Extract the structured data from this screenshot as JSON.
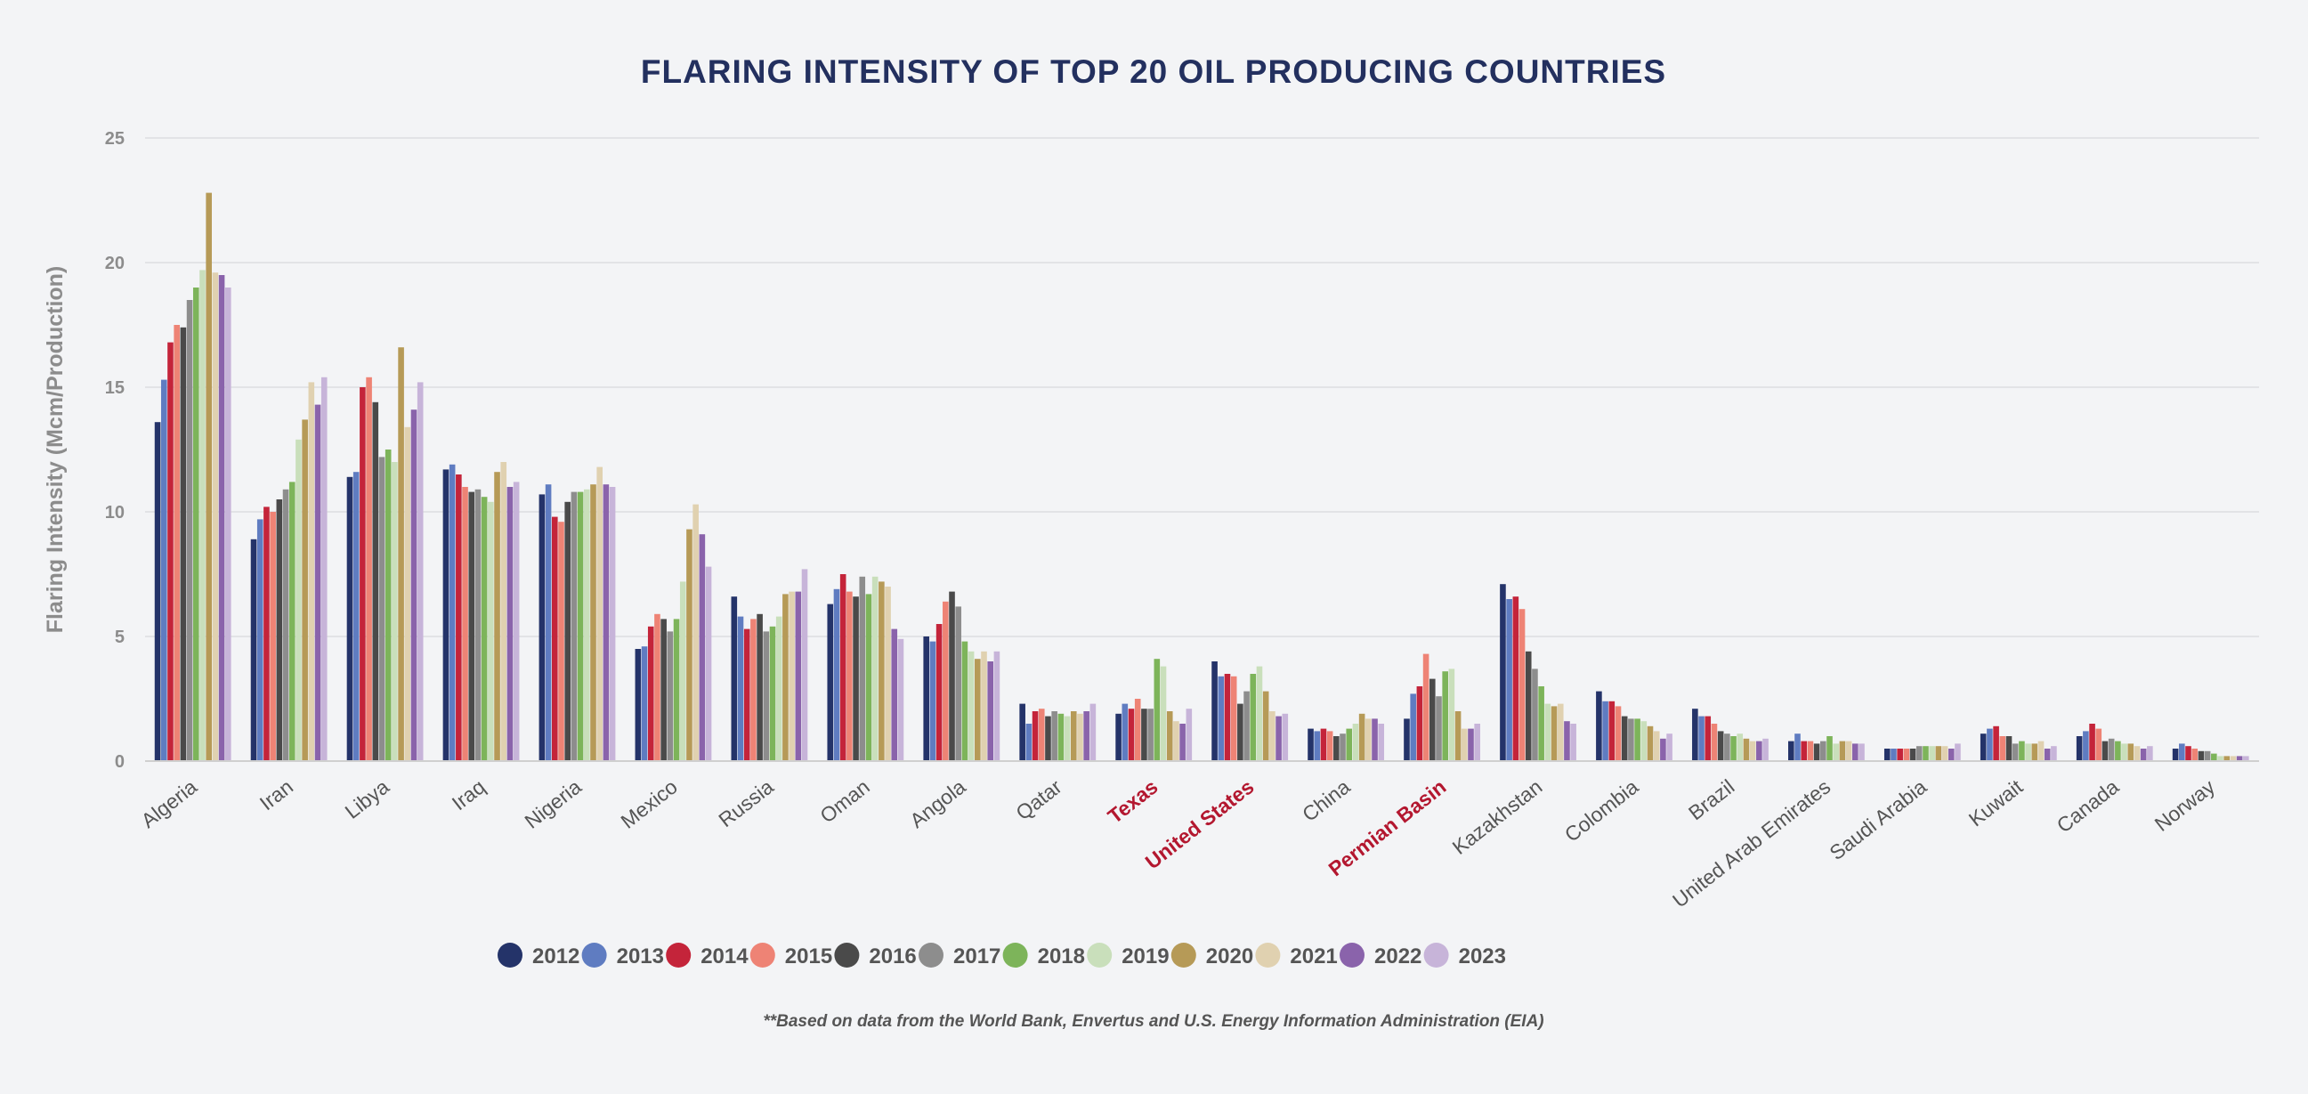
{
  "chart_data": {
    "type": "bar",
    "title": "FLARING INTENSITY OF TOP 20 OIL PRODUCING COUNTRIES",
    "ylabel": "Flaring Intensity (Mcm/Production)",
    "xlabel": "",
    "ylim": [
      0,
      25
    ],
    "yticks": [
      0,
      5,
      10,
      15,
      20,
      25
    ],
    "grid": true,
    "legend_position": "bottom",
    "footnote": "**Based on data from the World Bank, Envertus and U.S. Energy Information Administration (EIA)",
    "highlight_color": "#b3172f",
    "categories": [
      "Algeria",
      "Iran",
      "Libya",
      "Iraq",
      "Nigeria",
      "Mexico",
      "Russia",
      "Oman",
      "Angola",
      "Qatar",
      "Texas",
      "United States",
      "China",
      "Permian Basin",
      "Kazakhstan",
      "Colombia",
      "Brazil",
      "United Arab Emirates",
      "Saudi Arabia",
      "Kuwait",
      "Canada",
      "Norway"
    ],
    "highlighted_categories": [
      "Texas",
      "United States",
      "Permian Basin"
    ],
    "series": [
      {
        "name": "2012",
        "color": "#243369",
        "values": [
          13.6,
          8.9,
          11.4,
          11.7,
          10.7,
          4.5,
          6.6,
          6.3,
          5.0,
          2.3,
          1.9,
          4.0,
          1.3,
          1.7,
          7.1,
          2.8,
          2.1,
          0.8,
          0.5,
          1.1,
          1.0,
          0.5
        ]
      },
      {
        "name": "2013",
        "color": "#5f7cc1",
        "values": [
          15.3,
          9.7,
          11.6,
          11.9,
          11.1,
          4.6,
          5.8,
          6.9,
          4.8,
          1.5,
          2.3,
          3.4,
          1.2,
          2.7,
          6.5,
          2.4,
          1.8,
          1.1,
          0.5,
          1.3,
          1.2,
          0.7
        ]
      },
      {
        "name": "2014",
        "color": "#c4243a",
        "values": [
          16.8,
          10.2,
          15.0,
          11.5,
          9.8,
          5.4,
          5.3,
          7.5,
          5.5,
          2.0,
          2.1,
          3.5,
          1.3,
          3.0,
          6.6,
          2.4,
          1.8,
          0.8,
          0.5,
          1.4,
          1.5,
          0.6
        ]
      },
      {
        "name": "2015",
        "color": "#ee8375",
        "values": [
          17.5,
          10.0,
          15.4,
          11.0,
          9.6,
          5.9,
          5.7,
          6.8,
          6.4,
          2.1,
          2.5,
          3.4,
          1.2,
          4.3,
          6.1,
          2.2,
          1.5,
          0.8,
          0.5,
          1.0,
          1.3,
          0.5
        ]
      },
      {
        "name": "2016",
        "color": "#4a4a4a",
        "values": [
          17.4,
          10.5,
          14.4,
          10.8,
          10.4,
          5.7,
          5.9,
          6.6,
          6.8,
          1.8,
          2.1,
          2.3,
          1.0,
          3.3,
          4.4,
          1.8,
          1.2,
          0.7,
          0.5,
          1.0,
          0.8,
          0.4
        ]
      },
      {
        "name": "2017",
        "color": "#8d8d8d",
        "values": [
          18.5,
          10.9,
          12.2,
          10.9,
          10.8,
          5.2,
          5.2,
          7.4,
          6.2,
          2.0,
          2.1,
          2.8,
          1.1,
          2.6,
          3.7,
          1.7,
          1.1,
          0.8,
          0.6,
          0.7,
          0.9,
          0.4
        ]
      },
      {
        "name": "2018",
        "color": "#7db45a",
        "values": [
          19.0,
          11.2,
          12.5,
          10.6,
          10.8,
          5.7,
          5.4,
          6.7,
          4.8,
          1.9,
          4.1,
          3.5,
          1.3,
          3.6,
          3.0,
          1.7,
          1.0,
          1.0,
          0.6,
          0.8,
          0.8,
          0.3
        ]
      },
      {
        "name": "2019",
        "color": "#c9dfbb",
        "values": [
          19.7,
          12.9,
          12.0,
          10.4,
          10.9,
          7.2,
          5.8,
          7.4,
          4.4,
          1.8,
          3.8,
          3.8,
          1.5,
          3.7,
          2.3,
          1.6,
          1.1,
          0.7,
          0.6,
          0.7,
          0.7,
          0.2
        ]
      },
      {
        "name": "2020",
        "color": "#b69a57",
        "values": [
          22.8,
          13.7,
          16.6,
          11.6,
          11.1,
          9.3,
          6.7,
          7.2,
          4.1,
          2.0,
          2.0,
          2.8,
          1.9,
          2.0,
          2.2,
          1.4,
          0.9,
          0.8,
          0.6,
          0.7,
          0.7,
          0.2
        ]
      },
      {
        "name": "2021",
        "color": "#e0d1b0",
        "values": [
          19.6,
          15.2,
          13.4,
          12.0,
          11.8,
          10.3,
          6.8,
          7.0,
          4.4,
          1.9,
          1.6,
          2.0,
          1.7,
          1.3,
          2.3,
          1.2,
          0.8,
          0.8,
          0.6,
          0.8,
          0.6,
          0.2
        ]
      },
      {
        "name": "2022",
        "color": "#8a63ab",
        "values": [
          19.5,
          14.3,
          14.1,
          11.0,
          11.1,
          9.1,
          6.8,
          5.3,
          4.0,
          2.0,
          1.5,
          1.8,
          1.7,
          1.3,
          1.6,
          0.9,
          0.8,
          0.7,
          0.5,
          0.5,
          0.5,
          0.2
        ]
      },
      {
        "name": "2023",
        "color": "#c7b4d9",
        "values": [
          19.0,
          15.4,
          15.2,
          11.2,
          11.0,
          7.8,
          7.7,
          4.9,
          4.4,
          2.3,
          2.1,
          1.9,
          1.5,
          1.5,
          1.5,
          1.1,
          0.9,
          0.7,
          0.7,
          0.6,
          0.6,
          0.2
        ]
      }
    ]
  }
}
